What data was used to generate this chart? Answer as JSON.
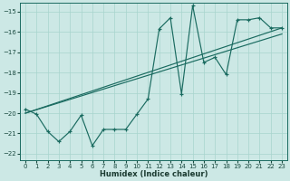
{
  "xlabel": "Humidex (Indice chaleur)",
  "bg_color": "#cce8e5",
  "line_color": "#1a6b60",
  "grid_color": "#a8d4ce",
  "xlim": [
    -0.5,
    23.5
  ],
  "ylim": [
    -22.3,
    -14.55
  ],
  "yticks": [
    -22,
    -21,
    -20,
    -19,
    -18,
    -17,
    -16,
    -15
  ],
  "xticks": [
    0,
    1,
    2,
    3,
    4,
    5,
    6,
    7,
    8,
    9,
    10,
    11,
    12,
    13,
    14,
    15,
    16,
    17,
    18,
    19,
    20,
    21,
    22,
    23
  ],
  "main_x": [
    0,
    1,
    2,
    3,
    4,
    5,
    6,
    7,
    8,
    9,
    10,
    11,
    12,
    13,
    14,
    15,
    16,
    17,
    18,
    19,
    20,
    21,
    22,
    23
  ],
  "main_y": [
    -19.8,
    -20.05,
    -20.9,
    -21.4,
    -20.9,
    -20.1,
    -21.6,
    -20.8,
    -20.8,
    -20.8,
    -20.05,
    -19.3,
    -15.85,
    -15.3,
    -19.05,
    -14.7,
    -17.5,
    -17.25,
    -18.1,
    -15.4,
    -15.4,
    -15.3,
    -15.8,
    -15.8
  ],
  "trend1_x": [
    0,
    23
  ],
  "trend1_y": [
    -20.0,
    -15.8
  ],
  "trend2_x": [
    0,
    23
  ],
  "trend2_y": [
    -20.0,
    -16.1
  ]
}
